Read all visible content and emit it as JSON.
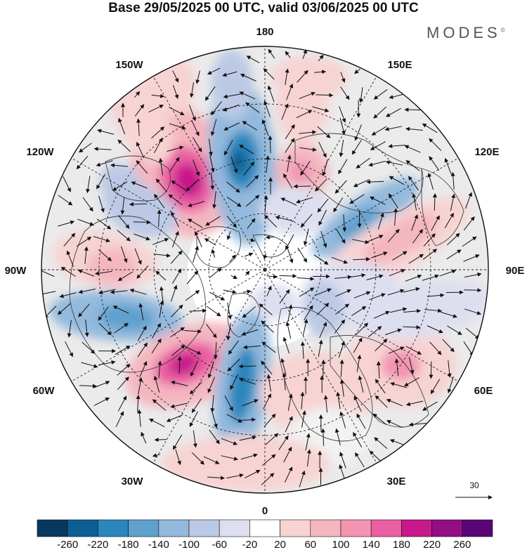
{
  "header": {
    "title": "Base 29/05/2025 00 UTC, valid 03/06/2025 00 UTC",
    "brand": "MODES",
    "brand_mark": "©"
  },
  "map": {
    "projection": "north-polar-stereographic",
    "longitude_labels": {
      "top": "180",
      "bottom": "0",
      "left": "90W",
      "right": "90E",
      "upper_left_1": "150W",
      "upper_left_2": "120W",
      "upper_right_1": "150E",
      "upper_right_2": "120E",
      "lower_left_1": "60W",
      "lower_left_2": "30W",
      "lower_right_1": "60E",
      "lower_right_2": "30E"
    },
    "reference_vector": {
      "value": "30"
    },
    "colors": {
      "neg": [
        "#08385d",
        "#0b5f95",
        "#2b86bd",
        "#5fa0ce",
        "#93b9dd",
        "#bcc9e5",
        "#dddff0"
      ],
      "neutral": "#ffffff",
      "pos": [
        "#f7d3d3",
        "#f4b6bf",
        "#f294b2",
        "#ea5fa2",
        "#c8198a",
        "#930e85",
        "#5a0678"
      ]
    }
  },
  "colorbar": {
    "tick_labels": [
      "-260",
      "-220",
      "-180",
      "-140",
      "-100",
      "-60",
      "-20",
      "20",
      "60",
      "100",
      "140",
      "180",
      "220",
      "260"
    ]
  }
}
